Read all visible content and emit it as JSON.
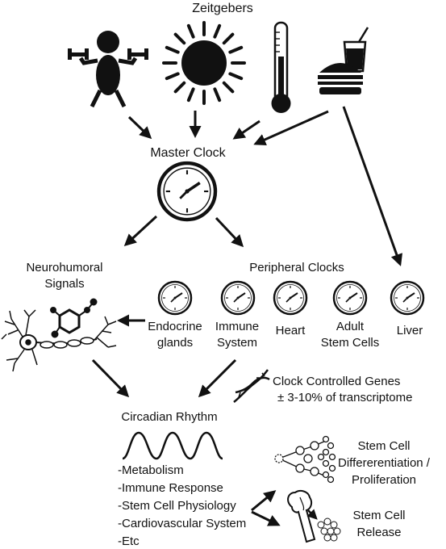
{
  "title": "Zeitgebers",
  "master_clock": "Master Clock",
  "peripheral_clocks": "Peripheral Clocks",
  "neurohumoral": [
    "Neurohumoral",
    "Signals"
  ],
  "organs": {
    "endocrine": [
      "Endocrine",
      "glands"
    ],
    "immune": [
      "Immune",
      "System"
    ],
    "heart": [
      "Heart"
    ],
    "adult_stem": [
      "Adult",
      "Stem Cells"
    ],
    "liver": [
      "Liver"
    ]
  },
  "ccg": [
    "Clock Controlled Genes",
    "± 3-10% of transcriptome"
  ],
  "circadian": "Circadian Rhythm",
  "rhythm_list": [
    "-Metabolism",
    "-Immune Response",
    "-Stem Cell Physiology",
    "-Cardiovascular System",
    "-Etc"
  ],
  "stem_diff": [
    "Stem Cell",
    "Differerentiation /",
    "Proliferation"
  ],
  "stem_release": [
    "Stem Cell",
    "Release"
  ],
  "icons": [
    "exercise-icon",
    "sun-icon",
    "thermometer-icon",
    "food-icon",
    "clock-icon",
    "neuron-icon",
    "molecule-icon",
    "dna-icon",
    "wave-icon",
    "cell-tree-icon",
    "bone-icon"
  ]
}
